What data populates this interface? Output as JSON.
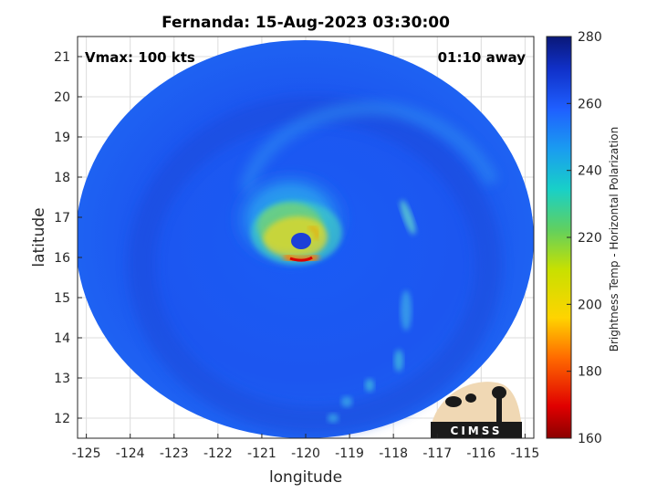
{
  "chart_data": {
    "type": "heatmap",
    "title": "Fernanda: 15-Aug-2023 03:30:00",
    "xlabel": "longitude",
    "ylabel": "latitude",
    "xlim": [
      -125.2,
      -114.8
    ],
    "ylim": [
      11.5,
      21.5
    ],
    "xticks": [
      -125,
      -124,
      -123,
      -122,
      -121,
      -120,
      -119,
      -118,
      -117,
      -116,
      -115
    ],
    "yticks": [
      12,
      13,
      14,
      15,
      16,
      17,
      18,
      19,
      20,
      21
    ],
    "xtick_labels": [
      "-125",
      "-124",
      "-123",
      "-122",
      "-121",
      "-120",
      "-119",
      "-118",
      "-117",
      "-116",
      "-115"
    ],
    "ytick_labels": [
      "12",
      "13",
      "14",
      "15",
      "16",
      "17",
      "18",
      "19",
      "20",
      "21"
    ],
    "grid": true,
    "annotations": {
      "left": "Vmax: 100 kts",
      "right": "01:10 away"
    },
    "storm_center": {
      "lon": -120.1,
      "lat": 16.1
    },
    "swath_center": {
      "lon": -120.1,
      "lat": 16.6
    },
    "colorbar": {
      "label": "Brightness Temp - Horizontal Polarization",
      "range": [
        160,
        280
      ],
      "ticks": [
        160,
        180,
        200,
        220,
        240,
        260,
        280
      ],
      "tick_labels": [
        "160",
        "180",
        "200",
        "220",
        "240",
        "260",
        "280"
      ],
      "colormap": "parula-like"
    }
  },
  "logo": {
    "text": "CIMSS"
  }
}
